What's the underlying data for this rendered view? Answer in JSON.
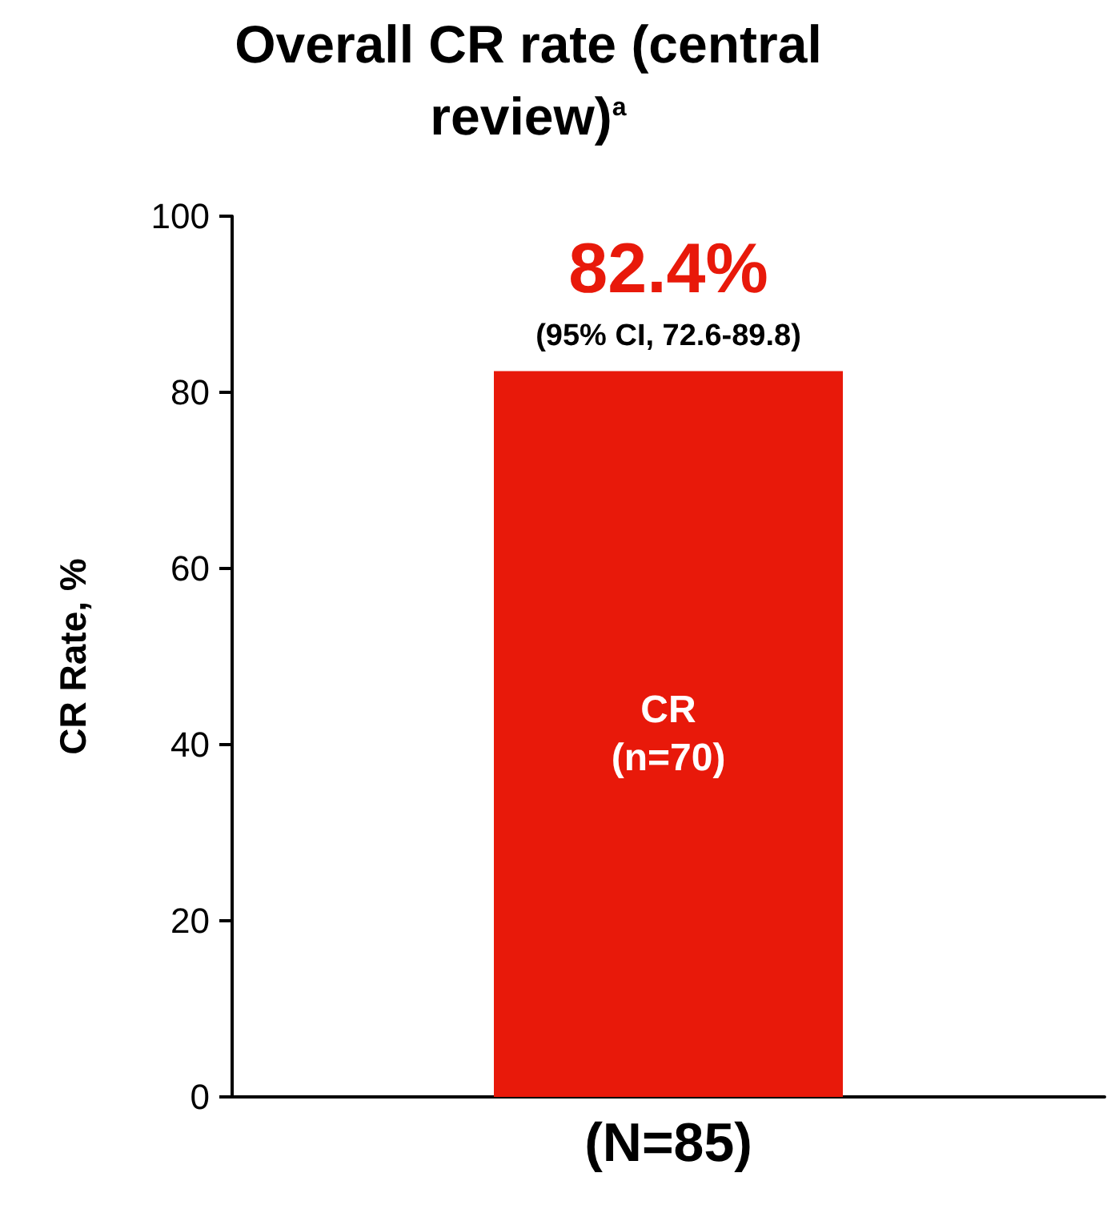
{
  "chart_data": {
    "type": "bar",
    "title": "Overall CR rate (central review)$^{a}$",
    "ylabel": "CR Rate, %",
    "categories": [
      "(N=85)"
    ],
    "values": [
      82.4
    ],
    "value_labels": [
      "82.4%"
    ],
    "color": "#e8190a",
    "ylim": [
      0,
      100
    ],
    "yticks": [
      0,
      20,
      40,
      60,
      80,
      100
    ],
    "grid": false,
    "annotations": [
      {
        "text": "(95% CI, 72.6-89.8)",
        "x": "(N=85)",
        "y": 82.4
      },
      "CR\n(n=70)"
    ]
  }
}
